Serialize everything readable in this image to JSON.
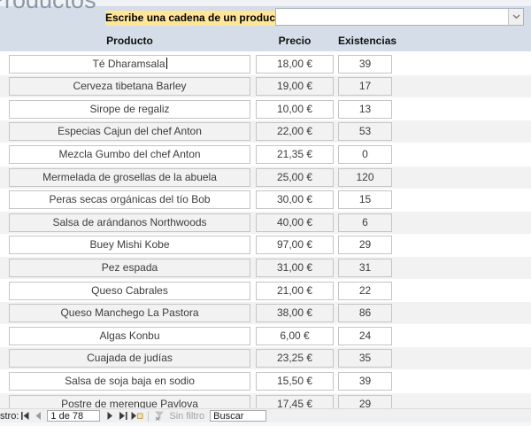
{
  "form": {
    "title": "Productos",
    "prompt_label": "Escribe una cadena de un producto",
    "combo_value": ""
  },
  "table": {
    "columns": [
      "Producto",
      "Precio",
      "Existencias"
    ],
    "rows": [
      {
        "producto": "Té Dharamsala",
        "precio": "18,00 €",
        "existencias": "39",
        "has_caret": true
      },
      {
        "producto": "Cerveza tibetana Barley",
        "precio": "19,00 €",
        "existencias": "17"
      },
      {
        "producto": "Sirope de regaliz",
        "precio": "10,00 €",
        "existencias": "13"
      },
      {
        "producto": "Especias Cajun del chef Anton",
        "precio": "22,00 €",
        "existencias": "53"
      },
      {
        "producto": "Mezcla Gumbo del chef Anton",
        "precio": "21,35 €",
        "existencias": "0"
      },
      {
        "producto": "Mermelada de grosellas de la abuela",
        "precio": "25,00 €",
        "existencias": "120"
      },
      {
        "producto": "Peras secas orgánicas del tío Bob",
        "precio": "30,00 €",
        "existencias": "15"
      },
      {
        "producto": "Salsa de arándanos Northwoods",
        "precio": "40,00 €",
        "existencias": "6"
      },
      {
        "producto": "Buey Mishi Kobe",
        "precio": "97,00 €",
        "existencias": "29"
      },
      {
        "producto": "Pez espada",
        "precio": "31,00 €",
        "existencias": "31"
      },
      {
        "producto": "Queso Cabrales",
        "precio": "21,00 €",
        "existencias": "22"
      },
      {
        "producto": "Queso Manchego La Pastora",
        "precio": "38,00 €",
        "existencias": "86"
      },
      {
        "producto": "Algas Konbu",
        "precio": "6,00 €",
        "existencias": "24"
      },
      {
        "producto": "Cuajada de judías",
        "precio": "23,25 €",
        "existencias": "35"
      },
      {
        "producto": "Salsa de soja baja en sodio",
        "precio": "15,50 €",
        "existencias": "39"
      },
      {
        "producto": "Postre de merengue Pavlova",
        "precio": "17,45 €",
        "existencias": "29"
      }
    ]
  },
  "record_navigator": {
    "label": "stro:",
    "position": "1 de 78",
    "filter_status": "Sin filtro",
    "search_text": "Buscar"
  },
  "icons": {
    "combo": "chevron-down-icon",
    "first": "first-record-icon",
    "previous": "previous-record-icon",
    "next": "next-record-icon",
    "last": "last-record-icon",
    "new": "new-record-icon",
    "filter": "filter-funnel-icon"
  },
  "colors": {
    "band": "#d5dde8",
    "prompt_highlight": "#ffe699",
    "alt_row": "#f2f2f2",
    "cell_border": "#c5c5c5",
    "title_text": "#8d98a6",
    "navbar_bg": "#f0f0f0"
  }
}
